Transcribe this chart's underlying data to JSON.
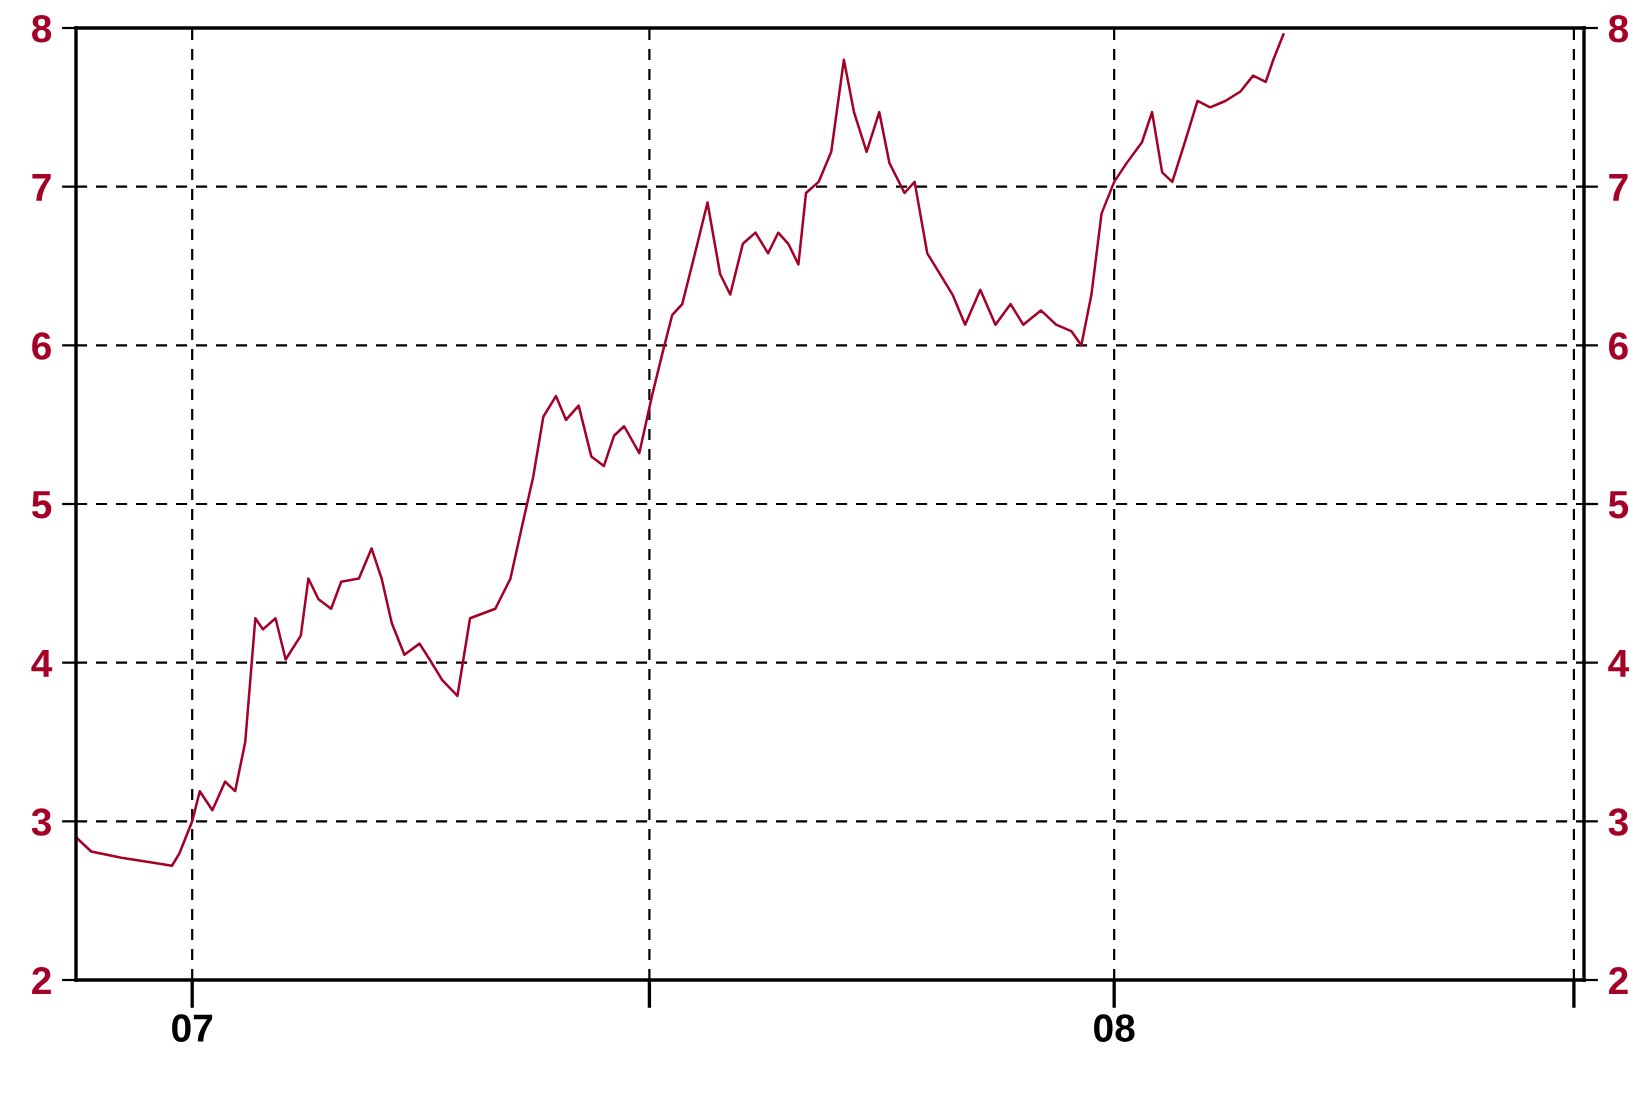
{
  "chart_data": {
    "type": "line",
    "x": [
      "2006-11-16",
      "2006-11-22",
      "2006-12-04",
      "2006-12-16",
      "2006-12-24",
      "2006-12-27",
      "2007-01-01",
      "2007-01-04",
      "2007-01-09",
      "2007-01-14",
      "2007-01-18",
      "2007-01-22",
      "2007-01-26",
      "2007-01-29",
      "2007-02-03",
      "2007-02-07",
      "2007-02-13",
      "2007-02-16",
      "2007-02-20",
      "2007-02-25",
      "2007-03-01",
      "2007-03-08",
      "2007-03-13",
      "2007-03-17",
      "2007-03-21",
      "2007-03-26",
      "2007-04-01",
      "2007-04-05",
      "2007-04-10",
      "2007-04-16",
      "2007-04-21",
      "2007-04-26",
      "2007-05-01",
      "2007-05-07",
      "2007-05-12",
      "2007-05-16",
      "2007-05-20",
      "2007-05-25",
      "2007-05-29",
      "2007-06-03",
      "2007-06-08",
      "2007-06-13",
      "2007-06-17",
      "2007-06-21",
      "2007-06-27",
      "2007-07-02",
      "2007-07-06",
      "2007-07-10",
      "2007-07-14",
      "2007-07-20",
      "2007-07-24",
      "2007-07-29",
      "2007-08-02",
      "2007-08-07",
      "2007-08-12",
      "2007-08-17",
      "2007-08-21",
      "2007-08-25",
      "2007-08-29",
      "2007-09-01",
      "2007-09-06",
      "2007-09-11",
      "2007-09-16",
      "2007-09-20",
      "2007-09-25",
      "2007-09-30",
      "2007-10-04",
      "2007-10-10",
      "2007-10-14",
      "2007-10-19",
      "2007-10-24",
      "2007-10-29",
      "2007-11-03",
      "2007-11-09",
      "2007-11-15",
      "2007-11-21",
      "2007-11-26",
      "2007-12-03",
      "2007-12-09",
      "2007-12-15",
      "2007-12-19",
      "2007-12-23",
      "2007-12-27",
      "2008-01-01",
      "2008-01-06",
      "2008-01-12",
      "2008-01-16",
      "2008-01-20",
      "2008-01-24",
      "2008-01-29",
      "2008-02-03",
      "2008-02-08",
      "2008-02-14",
      "2008-02-20",
      "2008-02-25",
      "2008-03-01",
      "2008-03-04",
      "2008-03-08"
    ],
    "series": [
      {
        "color": "#a50026",
        "values": [
          2.9,
          2.81,
          2.77,
          2.74,
          2.72,
          2.8,
          3.0,
          3.19,
          3.07,
          3.25,
          3.19,
          3.5,
          4.28,
          4.21,
          4.28,
          4.02,
          4.17,
          4.53,
          4.4,
          4.34,
          4.51,
          4.53,
          4.72,
          4.53,
          4.25,
          4.05,
          4.12,
          4.02,
          3.89,
          3.79,
          4.28,
          4.31,
          4.34,
          4.53,
          4.89,
          5.17,
          5.55,
          5.68,
          5.53,
          5.62,
          5.3,
          5.24,
          5.43,
          5.49,
          5.32,
          5.68,
          5.94,
          6.19,
          6.26,
          6.64,
          6.9,
          6.45,
          6.32,
          6.64,
          6.71,
          6.58,
          6.71,
          6.64,
          6.51,
          6.96,
          7.03,
          7.22,
          7.8,
          7.47,
          7.22,
          7.47,
          7.15,
          6.96,
          7.03,
          6.58,
          6.45,
          6.32,
          6.13,
          6.35,
          6.13,
          6.26,
          6.13,
          6.22,
          6.13,
          6.09,
          6.0,
          6.32,
          6.83,
          7.03,
          7.15,
          7.28,
          7.47,
          7.09,
          7.03,
          7.28,
          7.54,
          7.5,
          7.54,
          7.6,
          7.7,
          7.66,
          7.8,
          7.96
        ]
      }
    ],
    "xlim": [
      "2006-11-16",
      "2008-07-05"
    ],
    "xticks": [
      {
        "value": "2007-01-01",
        "label": "07"
      },
      {
        "value": "2007-07-01",
        "label": null
      },
      {
        "value": "2008-01-01",
        "label": "08"
      },
      {
        "value": "2008-07-01",
        "label": null
      }
    ],
    "ylim": [
      2,
      8
    ],
    "yticks": [
      2,
      3,
      4,
      5,
      6,
      7,
      8
    ],
    "y2lim": [
      2,
      8
    ],
    "y2ticks": [
      2,
      3,
      4,
      5,
      6,
      7,
      8
    ],
    "grid": true,
    "line_style": "solid",
    "marker": "none"
  }
}
